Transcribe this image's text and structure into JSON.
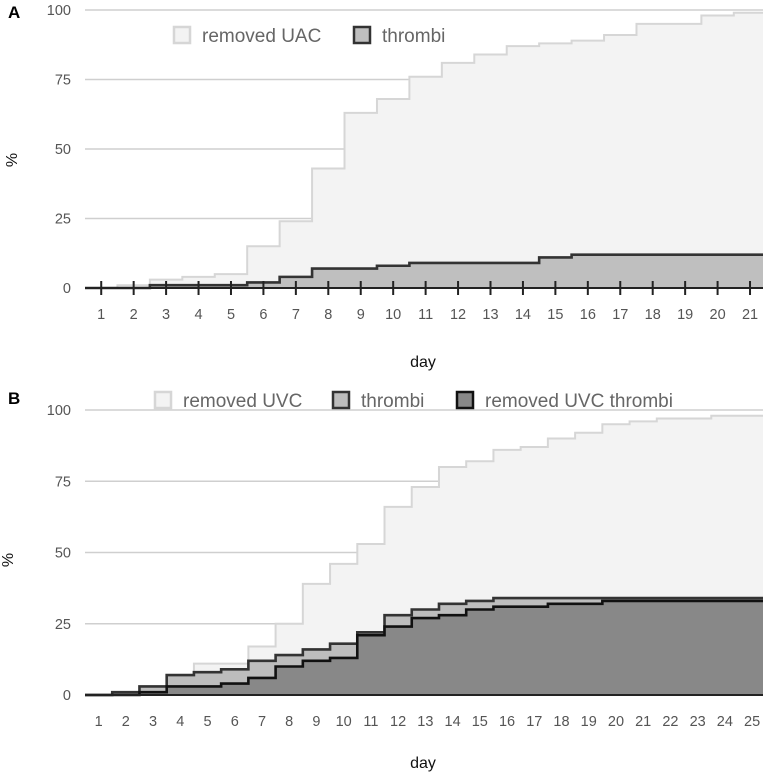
{
  "chart_data": [
    {
      "type": "area",
      "panel": "A",
      "ylabel": "%",
      "xlabel": "day",
      "xlim": [
        0.5,
        21.4
      ],
      "ylim": [
        0,
        100
      ],
      "x_ticks": [
        1,
        2,
        3,
        4,
        5,
        6,
        7,
        8,
        9,
        10,
        11,
        12,
        13,
        14,
        15,
        16,
        17,
        18,
        19,
        20,
        21
      ],
      "y_ticks": [
        0,
        25,
        50,
        75,
        100
      ],
      "legend": [
        "removed UAC",
        "thrombi"
      ],
      "series": [
        {
          "name": "removed UAC",
          "fill": "#f3f3f3",
          "stroke": "#d6d6d6",
          "steps": [
            [
              0.5,
              0
            ],
            [
              1.5,
              1
            ],
            [
              2.5,
              3
            ],
            [
              3.5,
              4
            ],
            [
              4.5,
              5
            ],
            [
              5.5,
              15
            ],
            [
              6.5,
              24
            ],
            [
              7.5,
              43
            ],
            [
              8.5,
              63
            ],
            [
              9.5,
              68
            ],
            [
              10.5,
              76
            ],
            [
              11.5,
              81
            ],
            [
              12.5,
              84
            ],
            [
              13.5,
              87
            ],
            [
              14.5,
              88
            ],
            [
              15.5,
              89
            ],
            [
              16.5,
              91
            ],
            [
              17.5,
              95
            ],
            [
              18.5,
              95
            ],
            [
              19.5,
              98
            ],
            [
              20.5,
              99
            ]
          ]
        },
        {
          "name": "thrombi",
          "fill": "#bfbfbf",
          "stroke": "#333333",
          "steps": [
            [
              0.5,
              0
            ],
            [
              2.5,
              1
            ],
            [
              5.5,
              2
            ],
            [
              6.5,
              4
            ],
            [
              7.5,
              7
            ],
            [
              9.5,
              8
            ],
            [
              10.5,
              9
            ],
            [
              14.5,
              11
            ],
            [
              15.5,
              12
            ]
          ]
        }
      ]
    },
    {
      "type": "area",
      "panel": "B",
      "ylabel": "%",
      "xlabel": "day",
      "xlim": [
        0.5,
        25.4
      ],
      "ylim": [
        0,
        100
      ],
      "x_ticks": [
        1,
        2,
        3,
        4,
        5,
        6,
        7,
        8,
        9,
        10,
        11,
        12,
        13,
        14,
        15,
        16,
        17,
        18,
        19,
        20,
        21,
        22,
        23,
        24,
        25
      ],
      "y_ticks": [
        0,
        25,
        50,
        75,
        100
      ],
      "legend": [
        "removed UVC",
        "thrombi",
        "removed UVC thrombi"
      ],
      "series": [
        {
          "name": "removed UVC",
          "fill": "#f3f3f3",
          "stroke": "#d6d6d6",
          "steps": [
            [
              0.5,
              0
            ],
            [
              1.5,
              1
            ],
            [
              2.5,
              1
            ],
            [
              3.5,
              5
            ],
            [
              4.5,
              11
            ],
            [
              5.5,
              11
            ],
            [
              6.5,
              17
            ],
            [
              7.5,
              25
            ],
            [
              8.5,
              39
            ],
            [
              9.5,
              46
            ],
            [
              10.5,
              53
            ],
            [
              11.5,
              66
            ],
            [
              12.5,
              73
            ],
            [
              13.5,
              80
            ],
            [
              14.5,
              82
            ],
            [
              15.5,
              86
            ],
            [
              16.5,
              87
            ],
            [
              17.5,
              90
            ],
            [
              18.5,
              92
            ],
            [
              19.5,
              95
            ],
            [
              20.5,
              96
            ],
            [
              21.5,
              97
            ],
            [
              22.5,
              97
            ],
            [
              23.5,
              98
            ],
            [
              24.5,
              98
            ]
          ]
        },
        {
          "name": "thrombi",
          "fill": "#bdbdbd",
          "stroke": "#333333",
          "steps": [
            [
              0.5,
              0
            ],
            [
              1.5,
              1
            ],
            [
              2.5,
              3
            ],
            [
              3.5,
              7
            ],
            [
              4.5,
              8
            ],
            [
              5.5,
              9
            ],
            [
              6.5,
              12
            ],
            [
              7.5,
              14
            ],
            [
              8.5,
              16
            ],
            [
              9.5,
              18
            ],
            [
              10.5,
              22
            ],
            [
              11.5,
              28
            ],
            [
              12.5,
              30
            ],
            [
              13.5,
              32
            ],
            [
              14.5,
              33
            ],
            [
              15.5,
              34
            ]
          ]
        },
        {
          "name": "removed UVC thrombi",
          "fill": "#888888",
          "stroke": "#111111",
          "steps": [
            [
              0.5,
              0
            ],
            [
              2.5,
              1
            ],
            [
              3.5,
              3
            ],
            [
              5.5,
              4
            ],
            [
              6.5,
              6
            ],
            [
              7.5,
              10
            ],
            [
              8.5,
              12
            ],
            [
              9.5,
              13
            ],
            [
              10.5,
              21
            ],
            [
              11.5,
              24
            ],
            [
              12.5,
              27
            ],
            [
              13.5,
              28
            ],
            [
              14.5,
              30
            ],
            [
              15.5,
              31
            ],
            [
              17.5,
              32
            ],
            [
              19.5,
              33
            ]
          ]
        }
      ]
    }
  ]
}
